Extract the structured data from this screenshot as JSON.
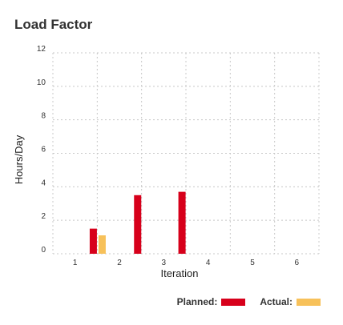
{
  "widget": {
    "title": "Load Factor"
  },
  "chart_data": {
    "type": "bar",
    "title": "Load Factor",
    "xlabel": "Iteration",
    "ylabel": "Hours/Day",
    "categories": [
      "1",
      "2",
      "3",
      "4",
      "5",
      "6"
    ],
    "series": [
      {
        "name": "Planned:",
        "color": "#d7001b",
        "values": [
          1.5,
          3.5,
          3.7,
          null,
          null,
          null
        ]
      },
      {
        "name": "Actual:",
        "color": "#f7c15a",
        "values": [
          1.1,
          null,
          null,
          null,
          null,
          null
        ]
      }
    ],
    "ylim": [
      0,
      12
    ],
    "yticks": [
      0,
      2,
      4,
      6,
      8,
      10,
      12
    ],
    "grid": true,
    "legend_position": "bottom-right"
  }
}
